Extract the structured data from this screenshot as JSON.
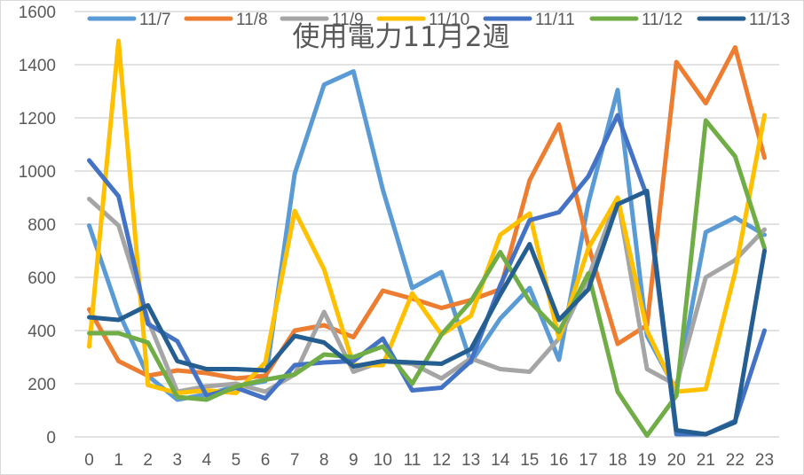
{
  "chart_data": {
    "type": "line",
    "title": "使用電力11月2週",
    "xlabel": "",
    "ylabel": "",
    "ylim": [
      0,
      1600
    ],
    "yticks": [
      0,
      200,
      400,
      600,
      800,
      1000,
      1200,
      1400,
      1600
    ],
    "grid": true,
    "legend_position": "top",
    "categories": [
      "0",
      "1",
      "2",
      "3",
      "4",
      "5",
      "6",
      "7",
      "8",
      "9",
      "10",
      "11",
      "12",
      "13",
      "14",
      "15",
      "16",
      "17",
      "18",
      "19",
      "20",
      "21",
      "22",
      "23"
    ],
    "series": [
      {
        "name": "11/7",
        "color": "#5b9bd5",
        "values": [
          795,
          470,
          230,
          140,
          160,
          190,
          210,
          990,
          1325,
          1375,
          930,
          560,
          620,
          280,
          445,
          560,
          290,
          880,
          1305,
          380,
          175,
          770,
          825,
          760
        ]
      },
      {
        "name": "11/8",
        "color": "#ed7d31",
        "values": [
          480,
          285,
          230,
          250,
          240,
          220,
          230,
          400,
          420,
          375,
          550,
          520,
          485,
          515,
          555,
          965,
          1175,
          720,
          350,
          420,
          1410,
          1255,
          1465,
          1050
        ]
      },
      {
        "name": "11/9",
        "color": "#a5a5a5",
        "values": [
          895,
          795,
          440,
          170,
          190,
          200,
          170,
          235,
          470,
          245,
          285,
          275,
          220,
          295,
          255,
          245,
          370,
          600,
          900,
          255,
          195,
          600,
          665,
          780
        ]
      },
      {
        "name": "11/10",
        "color": "#ffc000",
        "values": [
          340,
          1490,
          195,
          165,
          175,
          165,
          280,
          850,
          630,
          270,
          270,
          540,
          385,
          455,
          760,
          840,
          370,
          710,
          900,
          400,
          170,
          180,
          620,
          1210
        ]
      },
      {
        "name": "11/11",
        "color": "#4472c4",
        "values": [
          1040,
          905,
          425,
          360,
          155,
          185,
          145,
          270,
          280,
          285,
          370,
          175,
          185,
          285,
          570,
          815,
          845,
          980,
          1210,
          905,
          10,
          10,
          60,
          400
        ]
      },
      {
        "name": "11/12",
        "color": "#70ad47",
        "values": [
          390,
          390,
          355,
          150,
          140,
          190,
          215,
          235,
          310,
          300,
          340,
          200,
          385,
          510,
          695,
          510,
          395,
          615,
          170,
          5,
          155,
          1190,
          1055,
          710
        ]
      },
      {
        "name": "11/13",
        "color": "#255e91",
        "values": [
          450,
          440,
          495,
          285,
          255,
          255,
          250,
          380,
          355,
          265,
          285,
          280,
          275,
          330,
          535,
          725,
          440,
          555,
          875,
          925,
          25,
          10,
          55,
          700
        ]
      }
    ]
  }
}
